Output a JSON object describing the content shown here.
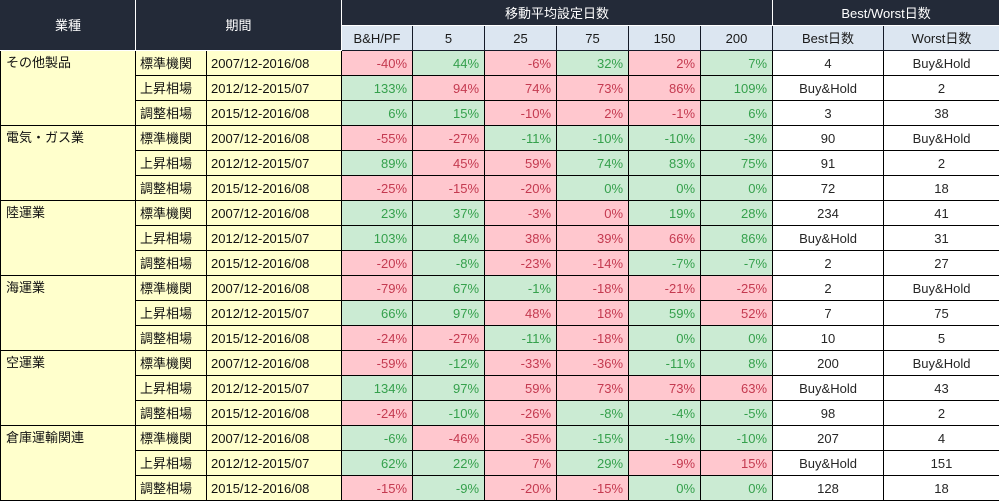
{
  "colors": {
    "header_bg": "#232A38",
    "header_text": "#FFFFFF",
    "subheader_bg": "#DCE6F1",
    "industry_bg": "#FFFFCC",
    "green_bg": "#CBEBD3",
    "green_text": "#35A04C",
    "red_bg": "#FFC7CE",
    "red_text": "#C43A50",
    "grid": "#000000"
  },
  "chart_data": {
    "type": "table",
    "header": {
      "industry": "業種",
      "period": "期間",
      "ma_group": "移動平均設定日数",
      "bw_group": "Best/Worst日数"
    },
    "sub_columns": [
      "B&H/PF",
      "5",
      "25",
      "75",
      "150",
      "200",
      "Best日数",
      "Worst日数"
    ],
    "groups": [
      {
        "industry": "その他製品",
        "rows": [
          {
            "scenario": "標準機関",
            "period": "2007/12-2016/08",
            "values": [
              {
                "v": "-40%",
                "c": "red"
              },
              {
                "v": "44%",
                "c": "green"
              },
              {
                "v": "-6%",
                "c": "red"
              },
              {
                "v": "32%",
                "c": "green"
              },
              {
                "v": "2%",
                "c": "red"
              },
              {
                "v": "7%",
                "c": "green"
              }
            ],
            "best": "4",
            "worst": "Buy&Hold"
          },
          {
            "scenario": "上昇相場",
            "period": "2012/12-2015/07",
            "values": [
              {
                "v": "133%",
                "c": "green"
              },
              {
                "v": "94%",
                "c": "red"
              },
              {
                "v": "74%",
                "c": "red"
              },
              {
                "v": "73%",
                "c": "red"
              },
              {
                "v": "86%",
                "c": "red"
              },
              {
                "v": "109%",
                "c": "green"
              }
            ],
            "best": "Buy&Hold",
            "worst": "2"
          },
          {
            "scenario": "調整相場",
            "period": "2015/12-2016/08",
            "values": [
              {
                "v": "6%",
                "c": "green"
              },
              {
                "v": "15%",
                "c": "green"
              },
              {
                "v": "-10%",
                "c": "red"
              },
              {
                "v": "2%",
                "c": "red"
              },
              {
                "v": "-1%",
                "c": "red"
              },
              {
                "v": "6%",
                "c": "green"
              }
            ],
            "best": "3",
            "worst": "38"
          }
        ]
      },
      {
        "industry": "電気・ガス業",
        "rows": [
          {
            "scenario": "標準機関",
            "period": "2007/12-2016/08",
            "values": [
              {
                "v": "-55%",
                "c": "red"
              },
              {
                "v": "-27%",
                "c": "red"
              },
              {
                "v": "-11%",
                "c": "green"
              },
              {
                "v": "-10%",
                "c": "green"
              },
              {
                "v": "-10%",
                "c": "green"
              },
              {
                "v": "-3%",
                "c": "green"
              }
            ],
            "best": "90",
            "worst": "Buy&Hold"
          },
          {
            "scenario": "上昇相場",
            "period": "2012/12-2015/07",
            "values": [
              {
                "v": "89%",
                "c": "green"
              },
              {
                "v": "45%",
                "c": "red"
              },
              {
                "v": "59%",
                "c": "red"
              },
              {
                "v": "74%",
                "c": "green"
              },
              {
                "v": "83%",
                "c": "green"
              },
              {
                "v": "75%",
                "c": "green"
              }
            ],
            "best": "91",
            "worst": "2"
          },
          {
            "scenario": "調整相場",
            "period": "2015/12-2016/08",
            "values": [
              {
                "v": "-25%",
                "c": "red"
              },
              {
                "v": "-15%",
                "c": "red"
              },
              {
                "v": "-20%",
                "c": "red"
              },
              {
                "v": "0%",
                "c": "green"
              },
              {
                "v": "0%",
                "c": "green"
              },
              {
                "v": "0%",
                "c": "green"
              }
            ],
            "best": "72",
            "worst": "18"
          }
        ]
      },
      {
        "industry": "陸運業",
        "rows": [
          {
            "scenario": "標準機関",
            "period": "2007/12-2016/08",
            "values": [
              {
                "v": "23%",
                "c": "green"
              },
              {
                "v": "37%",
                "c": "green"
              },
              {
                "v": "-3%",
                "c": "red"
              },
              {
                "v": "0%",
                "c": "red"
              },
              {
                "v": "19%",
                "c": "green"
              },
              {
                "v": "28%",
                "c": "green"
              }
            ],
            "best": "234",
            "worst": "41"
          },
          {
            "scenario": "上昇相場",
            "period": "2012/12-2015/07",
            "values": [
              {
                "v": "103%",
                "c": "green"
              },
              {
                "v": "84%",
                "c": "green"
              },
              {
                "v": "38%",
                "c": "red"
              },
              {
                "v": "39%",
                "c": "red"
              },
              {
                "v": "66%",
                "c": "red"
              },
              {
                "v": "86%",
                "c": "green"
              }
            ],
            "best": "Buy&Hold",
            "worst": "31"
          },
          {
            "scenario": "調整相場",
            "period": "2015/12-2016/08",
            "values": [
              {
                "v": "-20%",
                "c": "red"
              },
              {
                "v": "-8%",
                "c": "green"
              },
              {
                "v": "-23%",
                "c": "red"
              },
              {
                "v": "-14%",
                "c": "red"
              },
              {
                "v": "-7%",
                "c": "green"
              },
              {
                "v": "-7%",
                "c": "green"
              }
            ],
            "best": "2",
            "worst": "27"
          }
        ]
      },
      {
        "industry": "海運業",
        "rows": [
          {
            "scenario": "標準機関",
            "period": "2007/12-2016/08",
            "values": [
              {
                "v": "-79%",
                "c": "red"
              },
              {
                "v": "67%",
                "c": "green"
              },
              {
                "v": "-1%",
                "c": "green"
              },
              {
                "v": "-18%",
                "c": "red"
              },
              {
                "v": "-21%",
                "c": "red"
              },
              {
                "v": "-25%",
                "c": "red"
              }
            ],
            "best": "2",
            "worst": "Buy&Hold"
          },
          {
            "scenario": "上昇相場",
            "period": "2012/12-2015/07",
            "values": [
              {
                "v": "66%",
                "c": "green"
              },
              {
                "v": "97%",
                "c": "green"
              },
              {
                "v": "48%",
                "c": "red"
              },
              {
                "v": "18%",
                "c": "red"
              },
              {
                "v": "59%",
                "c": "green"
              },
              {
                "v": "52%",
                "c": "red"
              }
            ],
            "best": "7",
            "worst": "75"
          },
          {
            "scenario": "調整相場",
            "period": "2015/12-2016/08",
            "values": [
              {
                "v": "-24%",
                "c": "red"
              },
              {
                "v": "-27%",
                "c": "red"
              },
              {
                "v": "-11%",
                "c": "green"
              },
              {
                "v": "-18%",
                "c": "red"
              },
              {
                "v": "0%",
                "c": "green"
              },
              {
                "v": "0%",
                "c": "green"
              }
            ],
            "best": "10",
            "worst": "5"
          }
        ]
      },
      {
        "industry": "空運業",
        "rows": [
          {
            "scenario": "標準機関",
            "period": "2007/12-2016/08",
            "values": [
              {
                "v": "-59%",
                "c": "red"
              },
              {
                "v": "-12%",
                "c": "green"
              },
              {
                "v": "-33%",
                "c": "red"
              },
              {
                "v": "-36%",
                "c": "red"
              },
              {
                "v": "-11%",
                "c": "green"
              },
              {
                "v": "8%",
                "c": "green"
              }
            ],
            "best": "200",
            "worst": "Buy&Hold"
          },
          {
            "scenario": "上昇相場",
            "period": "2012/12-2015/07",
            "values": [
              {
                "v": "134%",
                "c": "green"
              },
              {
                "v": "97%",
                "c": "green"
              },
              {
                "v": "59%",
                "c": "red"
              },
              {
                "v": "73%",
                "c": "red"
              },
              {
                "v": "73%",
                "c": "red"
              },
              {
                "v": "63%",
                "c": "red"
              }
            ],
            "best": "Buy&Hold",
            "worst": "43"
          },
          {
            "scenario": "調整相場",
            "period": "2015/12-2016/08",
            "values": [
              {
                "v": "-24%",
                "c": "red"
              },
              {
                "v": "-10%",
                "c": "green"
              },
              {
                "v": "-26%",
                "c": "red"
              },
              {
                "v": "-8%",
                "c": "green"
              },
              {
                "v": "-4%",
                "c": "green"
              },
              {
                "v": "-5%",
                "c": "green"
              }
            ],
            "best": "98",
            "worst": "2"
          }
        ]
      },
      {
        "industry": "倉庫運輸関連",
        "rows": [
          {
            "scenario": "標準機関",
            "period": "2007/12-2016/08",
            "values": [
              {
                "v": "-6%",
                "c": "green"
              },
              {
                "v": "-46%",
                "c": "red"
              },
              {
                "v": "-35%",
                "c": "red"
              },
              {
                "v": "-15%",
                "c": "green"
              },
              {
                "v": "-19%",
                "c": "green"
              },
              {
                "v": "-10%",
                "c": "green"
              }
            ],
            "best": "207",
            "worst": "4"
          },
          {
            "scenario": "上昇相場",
            "period": "2012/12-2015/07",
            "values": [
              {
                "v": "62%",
                "c": "green"
              },
              {
                "v": "22%",
                "c": "green"
              },
              {
                "v": "7%",
                "c": "red"
              },
              {
                "v": "29%",
                "c": "green"
              },
              {
                "v": "-9%",
                "c": "red"
              },
              {
                "v": "15%",
                "c": "red"
              }
            ],
            "best": "Buy&Hold",
            "worst": "151"
          },
          {
            "scenario": "調整相場",
            "period": "2015/12-2016/08",
            "values": [
              {
                "v": "-15%",
                "c": "red"
              },
              {
                "v": "-9%",
                "c": "green"
              },
              {
                "v": "-20%",
                "c": "red"
              },
              {
                "v": "-15%",
                "c": "red"
              },
              {
                "v": "0%",
                "c": "green"
              },
              {
                "v": "0%",
                "c": "green"
              }
            ],
            "best": "128",
            "worst": "18"
          }
        ]
      }
    ]
  }
}
